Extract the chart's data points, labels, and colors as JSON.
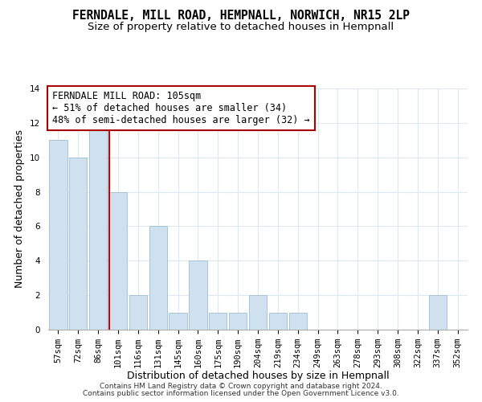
{
  "title": "FERNDALE, MILL ROAD, HEMPNALL, NORWICH, NR15 2LP",
  "subtitle": "Size of property relative to detached houses in Hempnall",
  "xlabel": "Distribution of detached houses by size in Hempnall",
  "ylabel": "Number of detached properties",
  "bin_labels": [
    "57sqm",
    "72sqm",
    "86sqm",
    "101sqm",
    "116sqm",
    "131sqm",
    "145sqm",
    "160sqm",
    "175sqm",
    "190sqm",
    "204sqm",
    "219sqm",
    "234sqm",
    "249sqm",
    "263sqm",
    "278sqm",
    "293sqm",
    "308sqm",
    "322sqm",
    "337sqm",
    "352sqm"
  ],
  "bar_heights": [
    11,
    10,
    12,
    8,
    2,
    6,
    1,
    4,
    1,
    1,
    2,
    1,
    1,
    0,
    0,
    0,
    0,
    0,
    0,
    2,
    0
  ],
  "bar_color": "#cfe0ef",
  "bar_edge_color": "#9dbdd6",
  "red_line_index": 3,
  "ylim": [
    0,
    14
  ],
  "yticks": [
    0,
    2,
    4,
    6,
    8,
    10,
    12,
    14
  ],
  "annotation_title": "FERNDALE MILL ROAD: 105sqm",
  "annotation_line1": "← 51% of detached houses are smaller (34)",
  "annotation_line2": "48% of semi-detached houses are larger (32) →",
  "footer1": "Contains HM Land Registry data © Crown copyright and database right 2024.",
  "footer2": "Contains public sector information licensed under the Open Government Licence v3.0.",
  "bg_color": "#ffffff",
  "grid_color": "#dce8f2",
  "annotation_box_color": "#ffffff",
  "annotation_border_color": "#aa0000",
  "title_fontsize": 10.5,
  "subtitle_fontsize": 9.5,
  "axis_label_fontsize": 9,
  "tick_fontsize": 7.5,
  "annotation_fontsize": 8.5,
  "footer_fontsize": 6.5
}
